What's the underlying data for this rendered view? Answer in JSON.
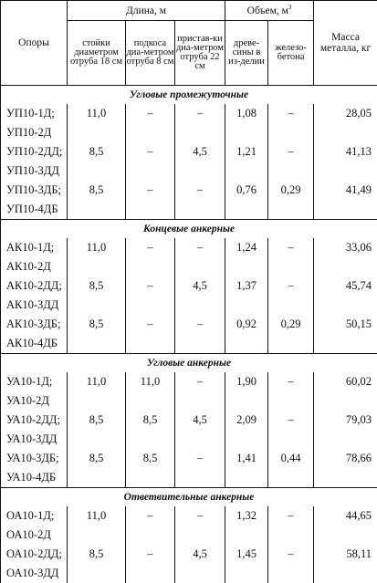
{
  "header": {
    "col_supports": "Опоры",
    "group_length": "Длина, м",
    "group_volume": "Объем, м",
    "volume_sup": "3",
    "col_mass": "Масса металла, кг",
    "sub_racks": "стойки диаметром отруба 18 см",
    "sub_struts": "подкоса диа-метром отруба 8 см",
    "sub_attach": "пристав-ки диа-метром отруба 22 см",
    "sub_wood": "древе-сины в из-делии",
    "sub_concrete": "железо-бетона"
  },
  "sections": [
    {
      "title": "Угловые промежуточные",
      "rows": [
        {
          "name": "УП10-1Д;",
          "racks": "11,0",
          "struts": "–",
          "attach": "–",
          "wood": "1,08",
          "concrete": "–",
          "mass": "28,05"
        },
        {
          "name": "УП10-2Д",
          "racks": "",
          "struts": "",
          "attach": "",
          "wood": "",
          "concrete": "",
          "mass": ""
        },
        {
          "name": "УП10-2ДД;",
          "racks": "8,5",
          "struts": "–",
          "attach": "4,5",
          "wood": "1,21",
          "concrete": "–",
          "mass": "41,13"
        },
        {
          "name": "УП10-3ДД",
          "racks": "",
          "struts": "",
          "attach": "",
          "wood": "",
          "concrete": "",
          "mass": ""
        },
        {
          "name": "УП10-3ДБ;",
          "racks": "8,5",
          "struts": "–",
          "attach": "–",
          "wood": "0,76",
          "concrete": "0,29",
          "mass": "41,49"
        },
        {
          "name": "УП10-4ДБ",
          "racks": "",
          "struts": "",
          "attach": "",
          "wood": "",
          "concrete": "",
          "mass": ""
        }
      ]
    },
    {
      "title": "Концевые анкерные",
      "rows": [
        {
          "name": "АК10-1Д;",
          "racks": "11,0",
          "struts": "–",
          "attach": "–",
          "wood": "1,24",
          "concrete": "–",
          "mass": "33,06"
        },
        {
          "name": "АК10-2Д",
          "racks": "",
          "struts": "",
          "attach": "",
          "wood": "",
          "concrete": "",
          "mass": ""
        },
        {
          "name": "АК10-2ДД;",
          "racks": "8,5",
          "struts": "–",
          "attach": "4,5",
          "wood": "1,37",
          "concrete": "–",
          "mass": "45,74"
        },
        {
          "name": "АК10-3ДД",
          "racks": "",
          "struts": "",
          "attach": "",
          "wood": "",
          "concrete": "",
          "mass": ""
        },
        {
          "name": "АК10-3ДБ;",
          "racks": "8,5",
          "struts": "–",
          "attach": "–",
          "wood": "0,92",
          "concrete": "0,29",
          "mass": "50,15"
        },
        {
          "name": "АК10-4ДБ",
          "racks": "",
          "struts": "",
          "attach": "",
          "wood": "",
          "concrete": "",
          "mass": ""
        }
      ]
    },
    {
      "title": "Угловые анкерные",
      "rows": [
        {
          "name": "УА10-1Д;",
          "racks": "11,0",
          "struts": "11,0",
          "attach": "–",
          "wood": "1,90",
          "concrete": "–",
          "mass": "60,02"
        },
        {
          "name": "УА10-2Д",
          "racks": "",
          "struts": "",
          "attach": "",
          "wood": "",
          "concrete": "",
          "mass": ""
        },
        {
          "name": "УА10-2ДД;",
          "racks": "8,5",
          "struts": "8,5",
          "attach": "4,5",
          "wood": "2,09",
          "concrete": "–",
          "mass": "79,03"
        },
        {
          "name": "УА10-3ДД",
          "racks": "",
          "struts": "",
          "attach": "",
          "wood": "",
          "concrete": "",
          "mass": ""
        },
        {
          "name": "УА10-3ДБ;",
          "racks": "8,5",
          "struts": "8,5",
          "attach": "–",
          "wood": "1,41",
          "concrete": "0,44",
          "mass": "78,66"
        },
        {
          "name": "УА10-4ДБ",
          "racks": "",
          "struts": "",
          "attach": "",
          "wood": "",
          "concrete": "",
          "mass": ""
        }
      ]
    },
    {
      "title": "Ответвительные анкерные",
      "rows": [
        {
          "name": "ОА10-1Д;",
          "racks": "11,0",
          "struts": "–",
          "attach": "–",
          "wood": "1,32",
          "concrete": "–",
          "mass": "44,65"
        },
        {
          "name": "ОА10-2Д",
          "racks": "",
          "struts": "",
          "attach": "",
          "wood": "",
          "concrete": "",
          "mass": ""
        },
        {
          "name": "ОА10-2ДД;",
          "racks": "8,5",
          "struts": "–",
          "attach": "4,5",
          "wood": "1,45",
          "concrete": "–",
          "mass": "58,11"
        },
        {
          "name": "ОА10-3ДД",
          "racks": "",
          "struts": "",
          "attach": "",
          "wood": "",
          "concrete": "",
          "mass": ""
        }
      ]
    }
  ]
}
